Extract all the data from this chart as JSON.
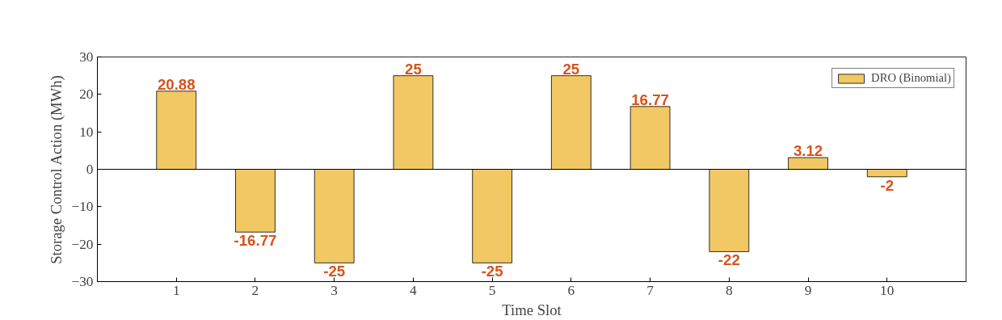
{
  "chart_data": {
    "type": "bar",
    "xlabel": "Time Slot",
    "ylabel": "Storage Control Action (MWh)",
    "x": [
      1,
      2,
      3,
      4,
      5,
      6,
      7,
      8,
      9,
      10
    ],
    "xlim": [
      0,
      11
    ],
    "xticks": [
      1,
      2,
      3,
      4,
      5,
      6,
      7,
      8,
      9,
      10
    ],
    "ylim": [
      -30,
      30
    ],
    "yticks": [
      -30,
      -20,
      -10,
      0,
      10,
      20,
      30
    ],
    "series": [
      {
        "name": "DRO (Binomial)",
        "color": "#f2c864",
        "values": [
          20.88,
          -16.77,
          -25,
          25,
          -25,
          25,
          16.77,
          -22,
          3.12,
          -2
        ]
      }
    ],
    "ref_lines": [
      {
        "axis": "y",
        "value": 0,
        "color": "#000000"
      }
    ],
    "data_labels": true,
    "legend": "top right",
    "grid": false
  }
}
